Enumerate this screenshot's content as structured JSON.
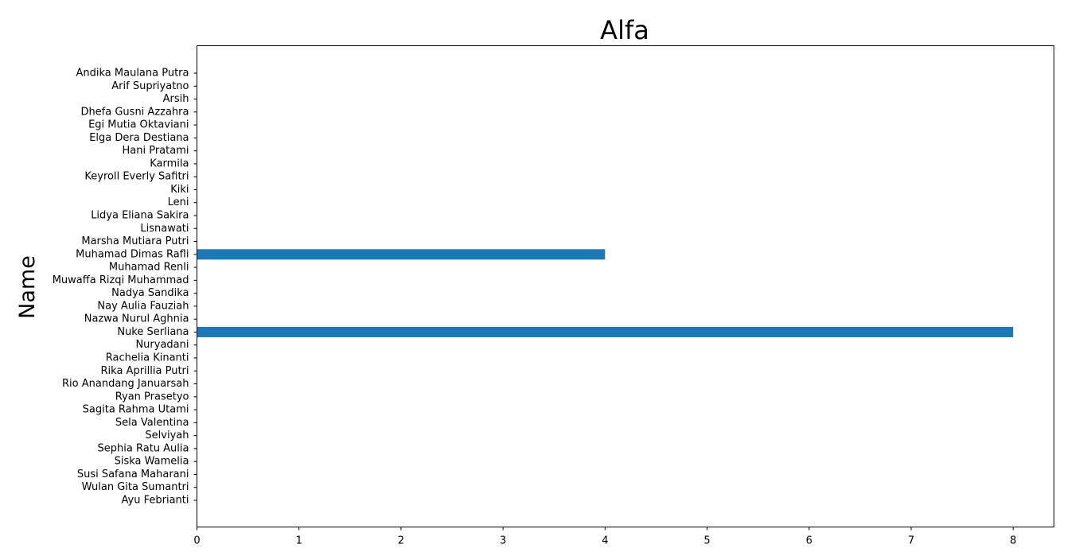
{
  "chart_data": {
    "type": "bar",
    "orientation": "horizontal",
    "title": "Alfa",
    "xlabel": "",
    "ylabel": "Name",
    "categories": [
      "Andika Maulana Putra",
      "Arif Supriyatno",
      "Arsih",
      "Dhefa Gusni Azzahra",
      "Egi Mutia Oktaviani",
      "Elga Dera Destiana",
      "Hani Pratami",
      "Karmila",
      "Keyroll Everly Safitri",
      "Kiki",
      "Leni",
      "Lidya Eliana Sakira",
      "Lisnawati",
      "Marsha Mutiara Putri",
      "Muhamad Dimas Rafli",
      "Muhamad Renli",
      "Muwaffa Rizqi Muhammad",
      "Nadya Sandika",
      "Nay Aulia Fauziah",
      "Nazwa Nurul Aghnia",
      "Nuke Serliana",
      "Nuryadani",
      "Rachelia Kinanti",
      "Rika Aprillia Putri",
      "Rio Anandang Januarsah",
      "Ryan Prasetyo",
      "Sagita Rahma Utami",
      "Sela Valentina",
      "Selviyah",
      "Sephia Ratu Aulia",
      "Siska Wamelia",
      "Susi Safana Maharani",
      "Wulan Gita Sumantri",
      "Ayu Febrianti"
    ],
    "values": [
      0,
      0,
      0,
      0,
      0,
      0,
      0,
      0,
      0,
      0,
      0,
      0,
      0,
      0,
      4,
      0,
      0,
      0,
      0,
      0,
      8,
      0,
      0,
      0,
      0,
      0,
      0,
      0,
      0,
      0,
      0,
      0,
      0,
      0
    ],
    "xlim": [
      0,
      8.4
    ],
    "xticks": [
      0,
      1,
      2,
      3,
      4,
      5,
      6,
      7,
      8
    ],
    "grid": false,
    "bar_color": "#1f77b4"
  }
}
